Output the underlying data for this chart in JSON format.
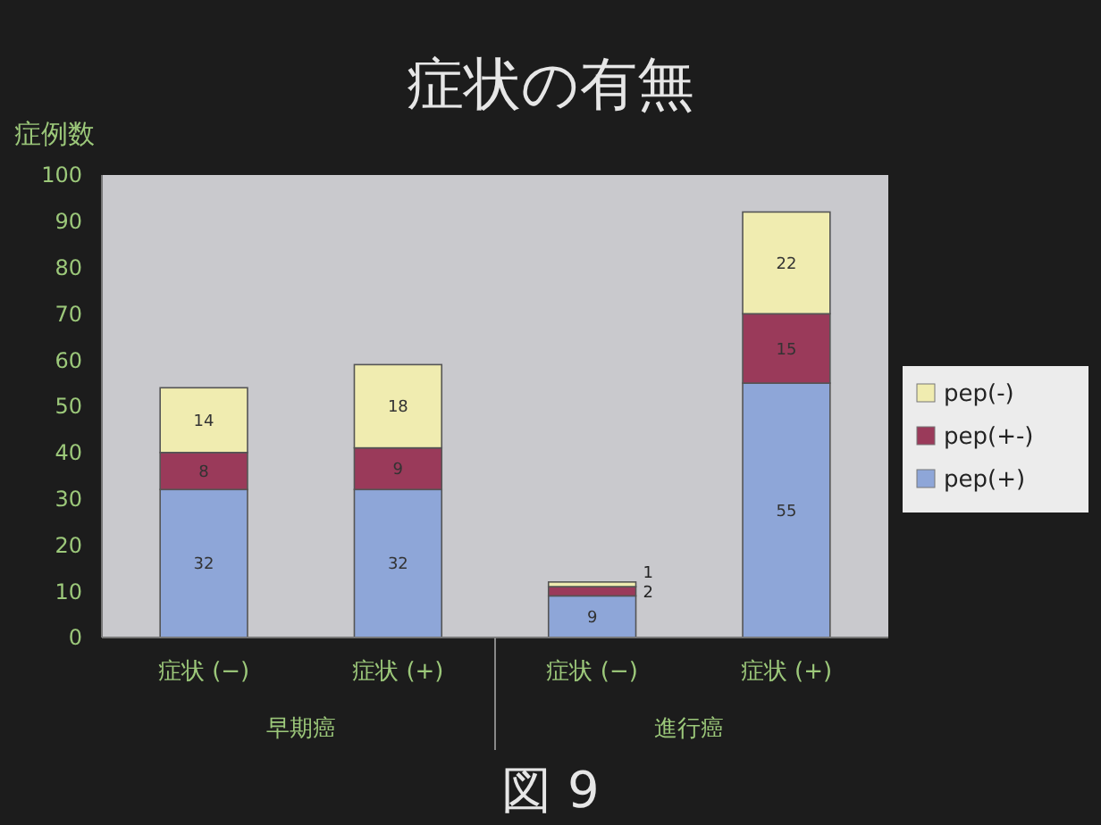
{
  "chart_data": {
    "type": "bar",
    "title": "症状の有無",
    "ylabel": "症例数",
    "categories": [
      "症状 (−)",
      "症状 (+)",
      "症状 (−)",
      "症状 (+)"
    ],
    "stacked": true,
    "data_labels": true,
    "legend": "right",
    "grid": false,
    "ylim": [
      0,
      100
    ],
    "yticks": [
      0,
      10,
      20,
      30,
      40,
      50,
      60,
      70,
      80,
      90,
      100
    ],
    "series": [
      {
        "name": "pep(+)",
        "color": "#8ea6d8",
        "values": [
          32,
          32,
          9,
          55
        ]
      },
      {
        "name": "pep(+-)",
        "color": "#9a3a5a",
        "values": [
          8,
          9,
          2,
          15
        ]
      },
      {
        "name": "pep(-)",
        "color": "#f0ecb0",
        "values": [
          14,
          18,
          1,
          22
        ]
      }
    ],
    "annotations": [
      "早期癌",
      "進行癌",
      "図 9"
    ]
  }
}
